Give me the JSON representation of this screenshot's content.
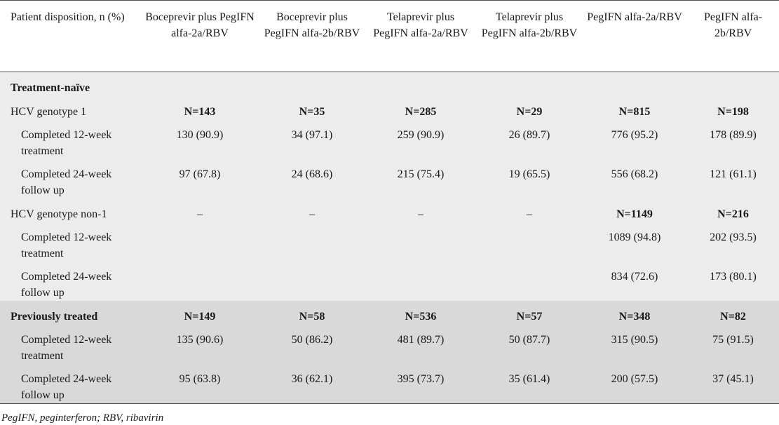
{
  "table": {
    "headers": [
      "Patient disposition, n (%)",
      "Boceprevir plus PegIFN alfa-2a/RBV",
      "Boceprevir plus PegIFN alfa-2b/RBV",
      "Telaprevir plus PegIFN alfa-2a/RBV",
      "Telaprevir plus PegIFN alfa-2b/RBV",
      "PegIFN alfa-2a/RBV",
      "PegIFN alfa-2b/RBV"
    ],
    "sections": [
      {
        "title": "Treatment-naïve",
        "groups": [
          {
            "label": "HCV genotype 1",
            "values": [
              "N=143",
              "N=35",
              "N=285",
              "N=29",
              "N=815",
              "N=198"
            ],
            "rows": [
              {
                "label": "Completed 12-week treatment",
                "values": [
                  "130 (90.9)",
                  "34 (97.1)",
                  "259 (90.9)",
                  "26 (89.7)",
                  "776 (95.2)",
                  "178 (89.9)"
                ]
              },
              {
                "label": "Completed 24-week follow up",
                "values": [
                  "97 (67.8)",
                  "24 (68.6)",
                  "215 (75.4)",
                  "19 (65.5)",
                  "556 (68.2)",
                  "121 (61.1)"
                ]
              }
            ]
          },
          {
            "label": "HCV genotype non-1",
            "values": [
              "–",
              "–",
              "–",
              "–",
              "N=1149",
              "N=216"
            ],
            "rows": [
              {
                "label": "Completed 12-week treatment",
                "values": [
                  "",
                  "",
                  "",
                  "",
                  "1089 (94.8)",
                  "202 (93.5)"
                ]
              },
              {
                "label": "Completed 24-week follow up",
                "values": [
                  "",
                  "",
                  "",
                  "",
                  "834 (72.6)",
                  "173 (80.1)"
                ]
              }
            ]
          }
        ]
      },
      {
        "title": "Previously treated",
        "values": [
          "N=149",
          "N=58",
          "N=536",
          "N=57",
          "N=348",
          "N=82"
        ],
        "rows": [
          {
            "label": "Completed 12-week treatment",
            "values": [
              "135 (90.6)",
              "50 (86.2)",
              "481 (89.7)",
              "50 (87.7)",
              "315 (90.5)",
              "75 (91.5)"
            ]
          },
          {
            "label": "Completed 24-week follow up",
            "values": [
              "95 (63.8)",
              "36 (62.1)",
              "395 (73.7)",
              "35 (61.4)",
              "200 (57.5)",
              "37 (45.1)"
            ]
          }
        ]
      }
    ],
    "footnote": "PegIFN, peginterferon; RBV, ribavirin",
    "colors": {
      "shade_light": "#ececec",
      "shade_dark": "#d9d9d9",
      "rule": "#555555"
    }
  }
}
